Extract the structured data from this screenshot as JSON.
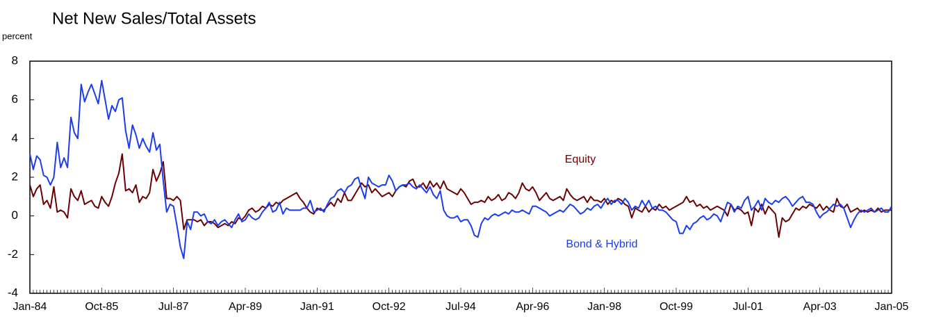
{
  "chart_data": {
    "type": "line",
    "title": "Net New Sales/Total Assets",
    "y_label": "percent",
    "categories": [
      "Jan-84",
      null,
      null,
      null,
      null,
      null,
      null,
      null,
      null,
      null,
      null,
      null,
      null,
      null,
      null,
      null,
      null,
      null,
      null,
      null,
      null,
      "Oct-85",
      null,
      null,
      null,
      null,
      null,
      null,
      null,
      null,
      null,
      null,
      null,
      null,
      null,
      null,
      null,
      null,
      null,
      null,
      null,
      null,
      "Jul-87",
      null,
      null,
      null,
      null,
      null,
      null,
      null,
      null,
      null,
      null,
      null,
      null,
      null,
      null,
      null,
      null,
      null,
      null,
      null,
      null,
      "Apr-89",
      null,
      null,
      null,
      null,
      null,
      null,
      null,
      null,
      null,
      null,
      null,
      null,
      null,
      null,
      null,
      null,
      null,
      null,
      null,
      null,
      "Jan-91",
      null,
      null,
      null,
      null,
      null,
      null,
      null,
      null,
      null,
      null,
      null,
      null,
      null,
      null,
      null,
      null,
      null,
      null,
      null,
      null,
      "Oct-92",
      null,
      null,
      null,
      null,
      null,
      null,
      null,
      null,
      null,
      null,
      null,
      null,
      null,
      null,
      null,
      null,
      null,
      null,
      null,
      null,
      "Jul-94",
      null,
      null,
      null,
      null,
      null,
      null,
      null,
      null,
      null,
      null,
      null,
      null,
      null,
      null,
      null,
      null,
      null,
      null,
      null,
      null,
      "Apr-96",
      null,
      null,
      null,
      null,
      null,
      null,
      null,
      null,
      null,
      null,
      null,
      null,
      null,
      null,
      null,
      null,
      null,
      null,
      null,
      null,
      "Jan-98",
      null,
      null,
      null,
      null,
      null,
      null,
      null,
      null,
      null,
      null,
      null,
      null,
      null,
      null,
      null,
      null,
      null,
      null,
      null,
      null,
      "Oct-99",
      null,
      null,
      null,
      null,
      null,
      null,
      null,
      null,
      null,
      null,
      null,
      null,
      null,
      null,
      null,
      null,
      null,
      null,
      null,
      null,
      "Jul-01",
      null,
      null,
      null,
      null,
      null,
      null,
      null,
      null,
      null,
      null,
      null,
      null,
      null,
      null,
      null,
      null,
      null,
      null,
      null,
      null,
      "Apr-03",
      null,
      null,
      null,
      null,
      null,
      null,
      null,
      null,
      null,
      null,
      null,
      null,
      null,
      null,
      null,
      null,
      null,
      null,
      null,
      null,
      "Jan-05"
    ],
    "series": [
      {
        "name": "Bond & Hybrid",
        "color": "#1a3cf0",
        "values": [
          3.2,
          2.4,
          3.1,
          2.9,
          2.1,
          2.0,
          1.6,
          2.0,
          3.8,
          2.5,
          3.0,
          2.5,
          5.1,
          4.3,
          4.0,
          6.8,
          5.9,
          6.4,
          6.8,
          6.3,
          5.8,
          7.0,
          6.0,
          5.0,
          5.7,
          5.4,
          6.0,
          6.1,
          4.4,
          3.5,
          4.7,
          4.2,
          3.5,
          4.0,
          3.6,
          3.3,
          4.3,
          3.4,
          3.7,
          1.8,
          0.2,
          0.6,
          0.5,
          -0.5,
          -1.6,
          -2.2,
          -0.3,
          -0.7,
          0.2,
          0.2,
          0.0,
          0.1,
          -0.3,
          -0.4,
          -0.2,
          -0.5,
          -0.3,
          -0.2,
          -0.4,
          -0.6,
          -0.2,
          0.1,
          -0.3,
          -0.2,
          0.1,
          -0.1,
          -0.2,
          -0.1,
          0.2,
          0.4,
          0.7,
          0.2,
          0.3,
          0.7,
          0.1,
          0.4,
          0.3,
          0.3,
          0.3,
          0.3,
          0.4,
          0.4,
          0.8,
          0.2,
          0.3,
          0.4,
          0.2,
          0.6,
          0.9,
          1.0,
          1.3,
          1.4,
          1.2,
          1.5,
          1.6,
          1.9,
          2.0,
          1.4,
          0.9,
          2.0,
          1.7,
          1.6,
          1.5,
          1.6,
          1.6,
          2.1,
          1.8,
          1.3,
          1.5,
          1.6,
          1.6,
          1.7,
          1.5,
          1.4,
          1.6,
          1.4,
          1.2,
          1.5,
          1.1,
          0.9,
          1.3,
          0.3,
          0.0,
          -0.1,
          -0.1,
          0.0,
          -0.3,
          -0.2,
          -0.2,
          -0.5,
          -1.0,
          -1.1,
          -0.4,
          -0.1,
          -0.2,
          0.0,
          0.1,
          0.0,
          0.1,
          0.2,
          0.1,
          0.3,
          0.2,
          0.2,
          0.3,
          0.2,
          0.1,
          0.5,
          0.5,
          0.4,
          0.3,
          0.2,
          0.0,
          0.1,
          0.2,
          0.3,
          0.2,
          0.4,
          0.6,
          0.5,
          0.3,
          0.1,
          0.2,
          0.4,
          0.3,
          0.5,
          0.6,
          0.4,
          0.7,
          0.9,
          0.6,
          0.8,
          0.8,
          0.6,
          0.9,
          0.7,
          0.3,
          0.5,
          0.4,
          0.8,
          0.5,
          0.8,
          0.4,
          0.5,
          0.3,
          0.3,
          0.2,
          0.0,
          -0.2,
          -0.3,
          -0.9,
          -0.9,
          -0.5,
          -0.7,
          -0.4,
          -0.3,
          -0.1,
          0.0,
          -0.2,
          -0.1,
          0.1,
          0.0,
          -0.3,
          0.2,
          0.7,
          0.6,
          0.2,
          0.5,
          0.4,
          0.8,
          1.0,
          0.3,
          0.5,
          0.8,
          0.3,
          0.9,
          0.7,
          0.6,
          0.8,
          0.7,
          0.9,
          1.0,
          0.8,
          0.5,
          0.7,
          0.9,
          1.0,
          0.7,
          0.7,
          0.6,
          0.2,
          -0.1,
          0.1,
          0.2,
          0.4,
          0.6,
          0.5,
          0.6,
          0.4,
          -0.1,
          -0.6,
          -0.2,
          0.1,
          0.3,
          0.2,
          0.3,
          0.4,
          0.2,
          0.3,
          0.4,
          0.2,
          0.2,
          0.5
        ]
      },
      {
        "name": "Equity",
        "color": "#6b0000",
        "values": [
          1.6,
          1.0,
          1.4,
          1.6,
          0.6,
          0.8,
          0.4,
          1.5,
          0.2,
          0.3,
          0.2,
          -0.1,
          1.4,
          1.0,
          0.8,
          1.3,
          0.6,
          0.7,
          0.8,
          0.5,
          0.4,
          1.0,
          0.7,
          0.5,
          1.0,
          1.7,
          2.2,
          3.2,
          1.3,
          1.4,
          1.2,
          1.6,
          0.7,
          1.0,
          0.9,
          1.2,
          2.4,
          1.8,
          2.2,
          2.8,
          0.9,
          0.9,
          0.8,
          1.0,
          0.8,
          -0.7,
          -0.2,
          -0.2,
          -0.2,
          -0.3,
          -0.2,
          -0.5,
          -0.3,
          -0.3,
          -0.4,
          -0.6,
          -0.5,
          -0.4,
          -0.5,
          -0.3,
          -0.4,
          -0.1,
          -0.2,
          0.0,
          0.3,
          0.4,
          0.2,
          0.3,
          0.5,
          0.4,
          0.6,
          0.5,
          0.7,
          0.6,
          0.8,
          0.9,
          1.0,
          1.1,
          1.2,
          0.9,
          0.7,
          0.4,
          0.2,
          0.1,
          0.4,
          0.3,
          0.3,
          0.5,
          0.7,
          0.5,
          0.9,
          0.7,
          1.2,
          0.8,
          0.8,
          1.1,
          1.4,
          1.7,
          1.5,
          1.6,
          1.2,
          1.4,
          1.2,
          1.0,
          1.1,
          1.2,
          1.0,
          1.3,
          1.5,
          1.6,
          1.5,
          1.8,
          1.9,
          1.5,
          1.5,
          1.7,
          1.4,
          1.8,
          1.5,
          1.7,
          1.4,
          1.8,
          1.4,
          1.3,
          1.2,
          1.1,
          1.4,
          1.2,
          0.9,
          0.6,
          0.7,
          0.7,
          0.8,
          0.7,
          1.0,
          0.8,
          0.9,
          1.1,
          0.8,
          0.9,
          1.2,
          1.1,
          0.9,
          1.2,
          1.7,
          1.4,
          1.3,
          1.5,
          1.2,
          0.8,
          1.0,
          1.2,
          0.9,
          0.8,
          0.9,
          1.0,
          0.8,
          1.4,
          1.1,
          0.9,
          0.8,
          0.9,
          1.0,
          0.7,
          1.0,
          0.8,
          0.8,
          0.7,
          0.9,
          0.6,
          0.8,
          0.7,
          0.9,
          0.8,
          0.6,
          0.5,
          -0.1,
          0.4,
          0.3,
          0.2,
          0.5,
          0.2,
          0.4,
          0.3,
          0.6,
          0.4,
          0.5,
          0.3,
          0.4,
          0.5,
          0.6,
          0.7,
          1.0,
          0.7,
          0.8,
          0.5,
          0.6,
          0.4,
          0.5,
          0.3,
          0.4,
          0.5,
          0.4,
          0.3,
          0.0,
          0.6,
          0.3,
          0.4,
          0.3,
          0.1,
          0.2,
          -0.5,
          0.4,
          0.2,
          0.6,
          0.1,
          0.5,
          0.3,
          0.1,
          -1.1,
          -0.1,
          -0.3,
          -0.2,
          0.1,
          0.4,
          0.3,
          0.5,
          0.4,
          0.6,
          0.5,
          0.4,
          0.6,
          0.3,
          0.5,
          0.3,
          0.2,
          0.9,
          0.5,
          0.4,
          0.6,
          0.2,
          0.3,
          0.4,
          0.2,
          0.3,
          0.2,
          0.3,
          0.2,
          0.4,
          0.2,
          0.3,
          0.3,
          0.3
        ]
      }
    ],
    "annotations": [
      "Equity",
      "Bond & Hybrid"
    ],
    "ylim": [
      -4,
      8
    ],
    "yticks": [
      -4,
      -2,
      0,
      2,
      4,
      6,
      8
    ],
    "grid": false
  }
}
